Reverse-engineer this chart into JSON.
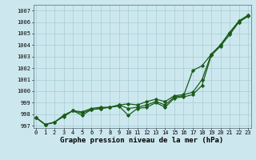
{
  "title": "Graphe pression niveau de la mer (hPa)",
  "bg_color": "#cce8ee",
  "line_color": "#1a5c1a",
  "x": [
    0,
    1,
    2,
    3,
    4,
    5,
    6,
    7,
    8,
    9,
    10,
    11,
    12,
    13,
    14,
    15,
    16,
    17,
    18,
    19,
    20,
    21,
    22,
    23
  ],
  "line1": [
    997.7,
    997.1,
    997.3,
    997.9,
    998.3,
    998.1,
    998.4,
    998.5,
    998.6,
    998.8,
    998.5,
    998.6,
    998.8,
    999.1,
    998.8,
    999.5,
    999.6,
    1001.8,
    1002.2,
    1003.2,
    1004.0,
    1005.1,
    1006.1,
    1006.6
  ],
  "line2": [
    997.7,
    997.1,
    997.3,
    997.9,
    998.3,
    997.9,
    998.4,
    998.5,
    998.6,
    998.7,
    997.9,
    998.5,
    998.6,
    999.0,
    998.6,
    999.4,
    999.5,
    999.7,
    1000.5,
    1003.1,
    1003.9,
    1004.9,
    1006.0,
    1006.5
  ],
  "line3": [
    997.7,
    997.1,
    997.3,
    997.8,
    998.3,
    998.2,
    998.5,
    998.6,
    998.6,
    998.8,
    998.9,
    998.8,
    999.1,
    999.3,
    999.1,
    999.6,
    999.7,
    999.9,
    1001.0,
    1003.2,
    1004.0,
    1005.1,
    1006.0,
    1006.6
  ],
  "ylim": [
    996.8,
    1007.5
  ],
  "yticks": [
    997,
    998,
    999,
    1000,
    1001,
    1002,
    1003,
    1004,
    1005,
    1006,
    1007
  ],
  "xlim": [
    -0.3,
    23.3
  ],
  "grid_color": "#a8ccd4",
  "marker": "D",
  "marker_size": 2.2,
  "linewidth": 0.9
}
